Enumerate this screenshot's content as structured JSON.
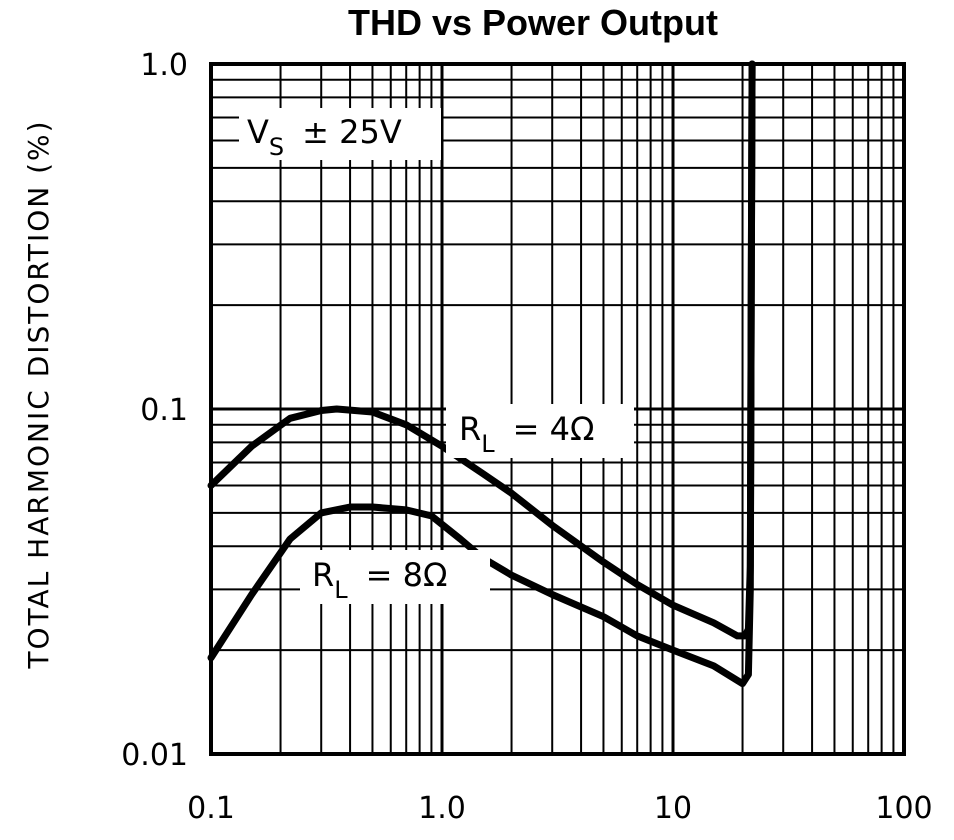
{
  "chart_data": {
    "type": "line",
    "title": "THD vs Power Output",
    "ylabel": "TOTAL HARMONIC DISTORTION (%)",
    "xlabel": "",
    "x_scale": "log",
    "y_scale": "log",
    "xlim": [
      0.1,
      100
    ],
    "ylim": [
      0.01,
      1.0
    ],
    "x_ticks": [
      "0.1",
      "1.0",
      "10",
      "100"
    ],
    "y_ticks": [
      "0.01",
      "0.1",
      "1.0"
    ],
    "grid": true,
    "annotations": {
      "supply": {
        "main": "V",
        "sub": "S",
        "rest": "± 25V"
      },
      "r4": {
        "main": "R",
        "sub": "L",
        "rest": "= 4Ω"
      },
      "r8": {
        "main": "R",
        "sub": "L",
        "rest": "= 8Ω"
      }
    },
    "series": [
      {
        "name": "R_L = 4Ω",
        "x": [
          0.1,
          0.15,
          0.22,
          0.3,
          0.35,
          0.5,
          0.7,
          1.0,
          1.5,
          2.0,
          3.0,
          5.0,
          7.0,
          10,
          15,
          19,
          20.5,
          21.2,
          21.6,
          21.8,
          22.0
        ],
        "y": [
          0.06,
          0.078,
          0.094,
          0.099,
          0.1,
          0.098,
          0.09,
          0.078,
          0.065,
          0.057,
          0.046,
          0.036,
          0.031,
          0.027,
          0.024,
          0.022,
          0.022,
          0.023,
          0.035,
          0.2,
          1.0
        ]
      },
      {
        "name": "R_L = 8Ω",
        "x": [
          0.1,
          0.15,
          0.22,
          0.3,
          0.4,
          0.5,
          0.7,
          0.9,
          1.2,
          1.5,
          2.0,
          3.0,
          5.0,
          7.0,
          10,
          15,
          20,
          21.2,
          21.6,
          21.8,
          22.0
        ],
        "y": [
          0.019,
          0.029,
          0.042,
          0.05,
          0.052,
          0.052,
          0.051,
          0.049,
          0.042,
          0.037,
          0.033,
          0.029,
          0.025,
          0.022,
          0.02,
          0.018,
          0.016,
          0.017,
          0.03,
          0.2,
          1.0
        ]
      }
    ]
  }
}
